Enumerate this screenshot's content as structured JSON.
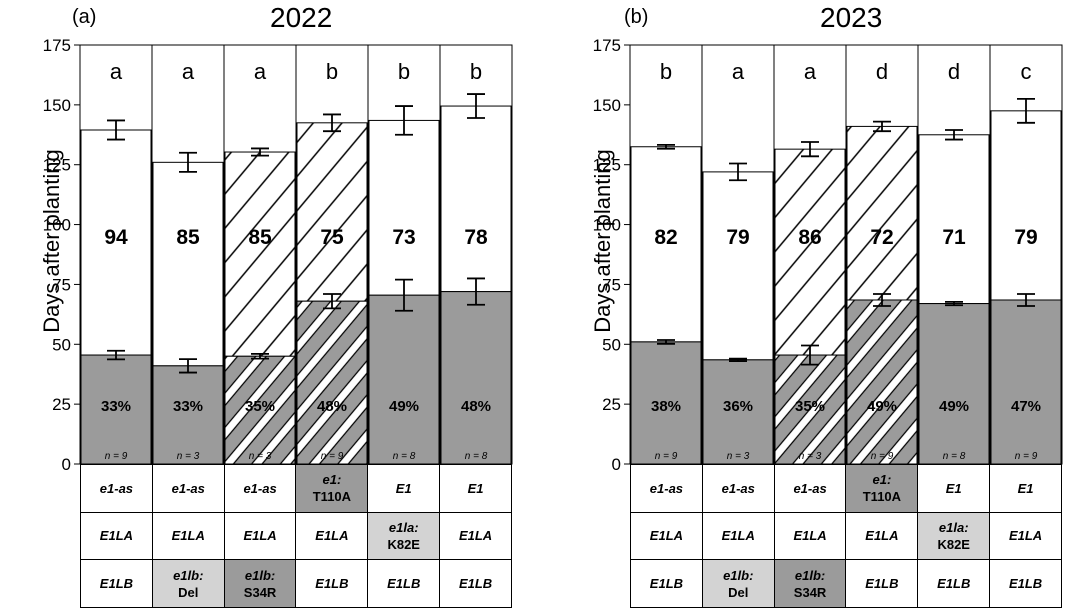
{
  "colors": {
    "shaded": "#9b9b9b",
    "light_cell": "#d3d3d3",
    "white": "#ffffff",
    "ink": "#000000"
  },
  "chart_data": [
    {
      "type": "bar",
      "panel": "(a)",
      "title": "2022",
      "ylabel": "Days after planting",
      "ylim": [
        0,
        175
      ],
      "yticks": [
        "0",
        "25",
        "50",
        "75",
        "100",
        "125",
        "150",
        "175"
      ],
      "stacked": true,
      "grid": false,
      "categories": [
        "e1-as / E1LA / E1LB",
        "e1-as / E1LA / e1lb:Del",
        "e1-as / E1LA / e1lb:S34R",
        "e1:T110A / E1LA / E1LB",
        "E1 / e1la:K82E / E1LB",
        "E1 / E1LA / E1LB"
      ],
      "bars": [
        {
          "lower": 45.5,
          "lower_err": 1.8,
          "total": 139.5,
          "total_err": 4,
          "hatched": false,
          "letter": "a",
          "mid_label": "94",
          "pct_label": "33%",
          "n_label": "n = 9"
        },
        {
          "lower": 41,
          "lower_err": 2.8,
          "total": 126,
          "total_err": 4,
          "hatched": false,
          "letter": "a",
          "mid_label": "85",
          "pct_label": "33%",
          "n_label": "n = 3"
        },
        {
          "lower": 45,
          "lower_err": 1,
          "total": 130.3,
          "total_err": 1.5,
          "hatched": true,
          "letter": "a",
          "mid_label": "85",
          "pct_label": "35%",
          "n_label": "n = 3"
        },
        {
          "lower": 68,
          "lower_err": 3,
          "total": 142.5,
          "total_err": 3.5,
          "hatched": true,
          "letter": "b",
          "mid_label": "75",
          "pct_label": "48%",
          "n_label": "n = 9"
        },
        {
          "lower": 70.5,
          "lower_err": 6.5,
          "total": 143.5,
          "total_err": 6,
          "hatched": false,
          "letter": "b",
          "mid_label": "73",
          "pct_label": "49%",
          "n_label": "n = 8"
        },
        {
          "lower": 72,
          "lower_err": 5.5,
          "total": 149.5,
          "total_err": 5,
          "hatched": false,
          "letter": "b",
          "mid_label": "78",
          "pct_label": "48%",
          "n_label": "n = 8"
        }
      ],
      "genotype_table": [
        [
          {
            "name": "e1-as",
            "style": "white"
          },
          {
            "name": "e1-as",
            "style": "white"
          },
          {
            "name": "e1-as",
            "style": "white"
          },
          {
            "name": "e1:",
            "mut": "T110A",
            "style": "dark"
          },
          {
            "name": "E1",
            "style": "white"
          },
          {
            "name": "E1",
            "style": "white"
          }
        ],
        [
          {
            "name": "E1LA",
            "style": "white"
          },
          {
            "name": "E1LA",
            "style": "white"
          },
          {
            "name": "E1LA",
            "style": "white"
          },
          {
            "name": "E1LA",
            "style": "white"
          },
          {
            "name": "e1la:",
            "mut": "K82E",
            "style": "light"
          },
          {
            "name": "E1LA",
            "style": "white"
          }
        ],
        [
          {
            "name": "E1LB",
            "style": "white"
          },
          {
            "name": "e1lb:",
            "mut": "Del",
            "style": "light"
          },
          {
            "name": "e1lb:",
            "mut": "S34R",
            "style": "dark"
          },
          {
            "name": "E1LB",
            "style": "white"
          },
          {
            "name": "E1LB",
            "style": "white"
          },
          {
            "name": "E1LB",
            "style": "white"
          }
        ]
      ]
    },
    {
      "type": "bar",
      "panel": "(b)",
      "title": "2023",
      "ylabel": "Days after planting",
      "ylim": [
        0,
        175
      ],
      "yticks": [
        "0",
        "25",
        "50",
        "75",
        "100",
        "125",
        "150",
        "175"
      ],
      "stacked": true,
      "grid": false,
      "categories": [
        "e1-as / E1LA / E1LB",
        "e1-as / E1LA / e1lb:Del",
        "e1-as / E1LA / e1lb:S34R",
        "e1:T110A / E1LA / E1LB",
        "E1 / e1la:K82E / E1LB",
        "E1 / E1LA / E1LB"
      ],
      "bars": [
        {
          "lower": 51,
          "lower_err": 0.8,
          "total": 132.5,
          "total_err": 0.8,
          "hatched": false,
          "letter": "b",
          "mid_label": "82",
          "pct_label": "38%",
          "n_label": "n = 9"
        },
        {
          "lower": 43.5,
          "lower_err": 0.5,
          "total": 122,
          "total_err": 3.5,
          "hatched": false,
          "letter": "a",
          "mid_label": "79",
          "pct_label": "36%",
          "n_label": "n = 3"
        },
        {
          "lower": 45.5,
          "lower_err": 4,
          "total": 131.5,
          "total_err": 3,
          "hatched": true,
          "letter": "a",
          "mid_label": "86",
          "pct_label": "35%",
          "n_label": "n = 3"
        },
        {
          "lower": 68.5,
          "lower_err": 2.5,
          "total": 141,
          "total_err": 2,
          "hatched": true,
          "letter": "d",
          "mid_label": "72",
          "pct_label": "49%",
          "n_label": "n = 9"
        },
        {
          "lower": 67,
          "lower_err": 0.7,
          "total": 137.5,
          "total_err": 2,
          "hatched": false,
          "letter": "d",
          "mid_label": "71",
          "pct_label": "49%",
          "n_label": "n = 8"
        },
        {
          "lower": 68.5,
          "lower_err": 2.5,
          "total": 147.5,
          "total_err": 5,
          "hatched": false,
          "letter": "c",
          "mid_label": "79",
          "pct_label": "47%",
          "n_label": "n = 9"
        }
      ],
      "genotype_table": [
        [
          {
            "name": "e1-as",
            "style": "white"
          },
          {
            "name": "e1-as",
            "style": "white"
          },
          {
            "name": "e1-as",
            "style": "white"
          },
          {
            "name": "e1:",
            "mut": "T110A",
            "style": "dark"
          },
          {
            "name": "E1",
            "style": "white"
          },
          {
            "name": "E1",
            "style": "white"
          }
        ],
        [
          {
            "name": "E1LA",
            "style": "white"
          },
          {
            "name": "E1LA",
            "style": "white"
          },
          {
            "name": "E1LA",
            "style": "white"
          },
          {
            "name": "E1LA",
            "style": "white"
          },
          {
            "name": "e1la:",
            "mut": "K82E",
            "style": "light"
          },
          {
            "name": "E1LA",
            "style": "white"
          }
        ],
        [
          {
            "name": "E1LB",
            "style": "white"
          },
          {
            "name": "e1lb:",
            "mut": "Del",
            "style": "light"
          },
          {
            "name": "e1lb:",
            "mut": "S34R",
            "style": "dark"
          },
          {
            "name": "E1LB",
            "style": "white"
          },
          {
            "name": "E1LB",
            "style": "white"
          },
          {
            "name": "E1LB",
            "style": "white"
          }
        ]
      ]
    }
  ]
}
